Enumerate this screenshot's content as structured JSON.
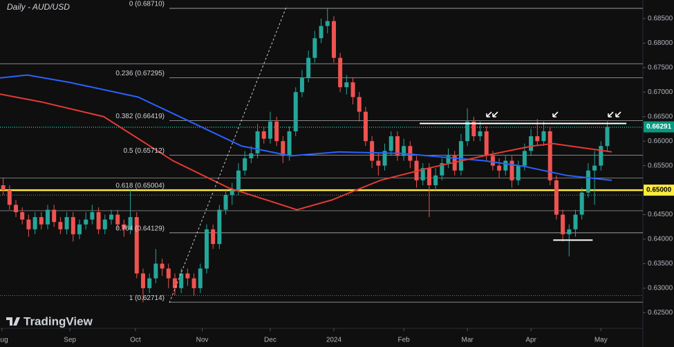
{
  "chart_data": {
    "type": "candlestick",
    "title": "Daily - AUD/USD",
    "brand": "TradingView",
    "xlim": [
      -0.5,
      100.6
    ],
    "xticks": [
      {
        "value": -0.2,
        "label": "Aug"
      },
      {
        "value": 10.5,
        "label": "Sep"
      },
      {
        "value": 20.8,
        "label": "Oct"
      },
      {
        "value": 31.3,
        "label": "Nov"
      },
      {
        "value": 42,
        "label": "Dec"
      },
      {
        "value": 52,
        "label": "2024"
      },
      {
        "value": 63,
        "label": "Feb"
      },
      {
        "value": 73,
        "label": "Mar"
      },
      {
        "value": 83,
        "label": "Apr"
      },
      {
        "value": 94,
        "label": "May"
      }
    ],
    "ylim": [
      0.6218,
      0.6888
    ],
    "yticks": [
      {
        "value": 0.625,
        "label": "0.62500"
      },
      {
        "value": 0.63,
        "label": "0.63000"
      },
      {
        "value": 0.635,
        "label": "0.63500"
      },
      {
        "value": 0.64,
        "label": "0.64000"
      },
      {
        "value": 0.645,
        "label": "0.64500"
      },
      {
        "value": 0.655,
        "label": "0.65500"
      },
      {
        "value": 0.66,
        "label": "0.66000"
      },
      {
        "value": 0.665,
        "label": "0.66500"
      },
      {
        "value": 0.67,
        "label": "0.67000"
      },
      {
        "value": 0.675,
        "label": "0.67500"
      },
      {
        "value": 0.68,
        "label": "0.68000"
      },
      {
        "value": 0.685,
        "label": "0.68500"
      }
    ],
    "up_color": "#26a69a",
    "down_color": "#ef5350",
    "open": [
      0.651,
      0.65,
      0.647,
      0.6455,
      0.644,
      0.642,
      0.6445,
      0.643,
      0.646,
      0.6435,
      0.642,
      0.6445,
      0.641,
      0.643,
      0.644,
      0.6455,
      0.642,
      0.644,
      0.645,
      0.643,
      0.642,
      0.6445,
      0.633,
      0.63,
      0.632,
      0.635,
      0.634,
      0.632,
      0.63,
      0.633,
      0.632,
      0.63,
      0.634,
      0.642,
      0.639,
      0.646,
      0.649,
      0.65,
      0.654,
      0.6565,
      0.6575,
      0.662,
      0.6605,
      0.664,
      0.66,
      0.657,
      0.662,
      0.67,
      0.673,
      0.677,
      0.681,
      0.6835,
      0.6845,
      0.677,
      0.671,
      0.672,
      0.669,
      0.666,
      0.66,
      0.656,
      0.655,
      0.658,
      0.661,
      0.657,
      0.659,
      0.656,
      0.652,
      0.6545,
      0.651,
      0.653,
      0.6555,
      0.657,
      0.654,
      0.66,
      0.664,
      0.661,
      0.662,
      0.657,
      0.655,
      0.654,
      0.656,
      0.652,
      0.655,
      0.658,
      0.661,
      0.66,
      0.662,
      0.652,
      0.645,
      0.641,
      0.642,
      0.645,
      0.6495,
      0.654,
      0.655,
      0.659
    ],
    "high": [
      0.6525,
      0.651,
      0.648,
      0.6465,
      0.645,
      0.6455,
      0.6455,
      0.647,
      0.647,
      0.6445,
      0.6455,
      0.6455,
      0.644,
      0.6455,
      0.647,
      0.6465,
      0.645,
      0.646,
      0.646,
      0.644,
      0.65,
      0.6455,
      0.634,
      0.633,
      0.638,
      0.636,
      0.635,
      0.633,
      0.634,
      0.634,
      0.633,
      0.635,
      0.643,
      0.643,
      0.647,
      0.65,
      0.6515,
      0.6555,
      0.658,
      0.659,
      0.6635,
      0.663,
      0.666,
      0.665,
      0.661,
      0.663,
      0.671,
      0.6745,
      0.6785,
      0.6825,
      0.685,
      0.6871,
      0.6855,
      0.678,
      0.6735,
      0.673,
      0.67,
      0.667,
      0.661,
      0.6575,
      0.6595,
      0.662,
      0.662,
      0.6605,
      0.66,
      0.657,
      0.6555,
      0.6555,
      0.6545,
      0.6565,
      0.6585,
      0.658,
      0.6615,
      0.6667,
      0.665,
      0.664,
      0.663,
      0.658,
      0.6565,
      0.657,
      0.657,
      0.656,
      0.6595,
      0.6625,
      0.6645,
      0.664,
      0.663,
      0.653,
      0.646,
      0.643,
      0.646,
      0.6505,
      0.6555,
      0.658,
      0.66,
      0.664
    ],
    "low": [
      0.649,
      0.646,
      0.6445,
      0.643,
      0.6405,
      0.641,
      0.642,
      0.642,
      0.6425,
      0.641,
      0.641,
      0.6395,
      0.64,
      0.642,
      0.643,
      0.641,
      0.641,
      0.643,
      0.642,
      0.6405,
      0.641,
      0.632,
      0.6271,
      0.629,
      0.631,
      0.6325,
      0.63,
      0.6285,
      0.629,
      0.6305,
      0.6285,
      0.629,
      0.633,
      0.638,
      0.638,
      0.645,
      0.647,
      0.649,
      0.653,
      0.6555,
      0.6565,
      0.6595,
      0.6595,
      0.659,
      0.6555,
      0.656,
      0.661,
      0.669,
      0.672,
      0.676,
      0.68,
      0.682,
      0.676,
      0.67,
      0.6695,
      0.6675,
      0.664,
      0.659,
      0.6545,
      0.653,
      0.654,
      0.657,
      0.656,
      0.656,
      0.6545,
      0.6505,
      0.651,
      0.6445,
      0.65,
      0.652,
      0.6545,
      0.653,
      0.653,
      0.659,
      0.66,
      0.66,
      0.656,
      0.654,
      0.6525,
      0.653,
      0.6505,
      0.651,
      0.654,
      0.657,
      0.659,
      0.659,
      0.651,
      0.644,
      0.6395,
      0.6365,
      0.6405,
      0.644,
      0.6485,
      0.647,
      0.654,
      0.658
    ],
    "close": [
      0.65,
      0.647,
      0.6455,
      0.644,
      0.642,
      0.6445,
      0.643,
      0.646,
      0.6435,
      0.642,
      0.6445,
      0.641,
      0.643,
      0.644,
      0.6455,
      0.642,
      0.644,
      0.645,
      0.643,
      0.642,
      0.6445,
      0.633,
      0.63,
      0.632,
      0.635,
      0.634,
      0.632,
      0.63,
      0.633,
      0.632,
      0.63,
      0.634,
      0.642,
      0.639,
      0.646,
      0.649,
      0.65,
      0.654,
      0.6565,
      0.6575,
      0.662,
      0.6605,
      0.664,
      0.66,
      0.657,
      0.662,
      0.67,
      0.673,
      0.677,
      0.681,
      0.6835,
      0.6845,
      0.677,
      0.671,
      0.672,
      0.669,
      0.666,
      0.66,
      0.656,
      0.655,
      0.658,
      0.661,
      0.657,
      0.659,
      0.656,
      0.652,
      0.6545,
      0.651,
      0.653,
      0.6555,
      0.657,
      0.654,
      0.66,
      0.664,
      0.661,
      0.662,
      0.657,
      0.655,
      0.654,
      0.656,
      0.652,
      0.655,
      0.658,
      0.661,
      0.66,
      0.662,
      0.652,
      0.645,
      0.641,
      0.642,
      0.645,
      0.6495,
      0.654,
      0.655,
      0.659,
      0.6629
    ],
    "lines": [
      {
        "color": "#2962ff",
        "x": [
          -0.5,
          3.8,
          10.4,
          21.2,
          31,
          37.5,
          45.2,
          52.8,
          62.5,
          75.6,
          82.1,
          88.6,
          95.7
        ],
        "values": [
          0.6729,
          0.6735,
          0.672,
          0.669,
          0.663,
          0.659,
          0.657,
          0.6578,
          0.6575,
          0.656,
          0.6548,
          0.653,
          0.652
        ]
      },
      {
        "color": "#e53935",
        "x": [
          -0.5,
          6,
          15.8,
          26.7,
          35.4,
          46.2,
          51.7,
          59.3,
          66.9,
          75.6,
          83.2,
          86.5,
          95.7
        ],
        "values": [
          0.6696,
          0.668,
          0.665,
          0.656,
          0.6505,
          0.646,
          0.648,
          0.652,
          0.6545,
          0.657,
          0.659,
          0.6595,
          0.6578
        ]
      }
    ],
    "fib_levels": [
      {
        "value": 0.6871,
        "label": "0 (0.68710)"
      },
      {
        "value": 0.67295,
        "label": "0.236 (0.67295)"
      },
      {
        "value": 0.66419,
        "label": "0.382 (0.66419)"
      },
      {
        "value": 0.65712,
        "label": "0.5 (0.65712)"
      },
      {
        "value": 0.65004,
        "label": "0.618 (0.65004)"
      },
      {
        "value": 0.64129,
        "label": "0.764 (0.64129)"
      },
      {
        "value": 0.62714,
        "label": "1 (0.62714)"
      }
    ],
    "levels": [
      0.6758,
      0.6628,
      0.6525,
      0.649,
      0.6458,
      0.6285
    ],
    "zones": [
      {
        "value": 0.6636,
        "x": [
          65.5,
          98
        ]
      },
      {
        "value": 0.6398,
        "x": [
          86.5,
          92.7
        ]
      }
    ],
    "price_tags": [
      {
        "value": 0.66291,
        "label": "0.66291",
        "color": "#089981"
      },
      {
        "value": 0.65,
        "label": "0.65000",
        "color": "#ffeb3b"
      }
    ]
  }
}
